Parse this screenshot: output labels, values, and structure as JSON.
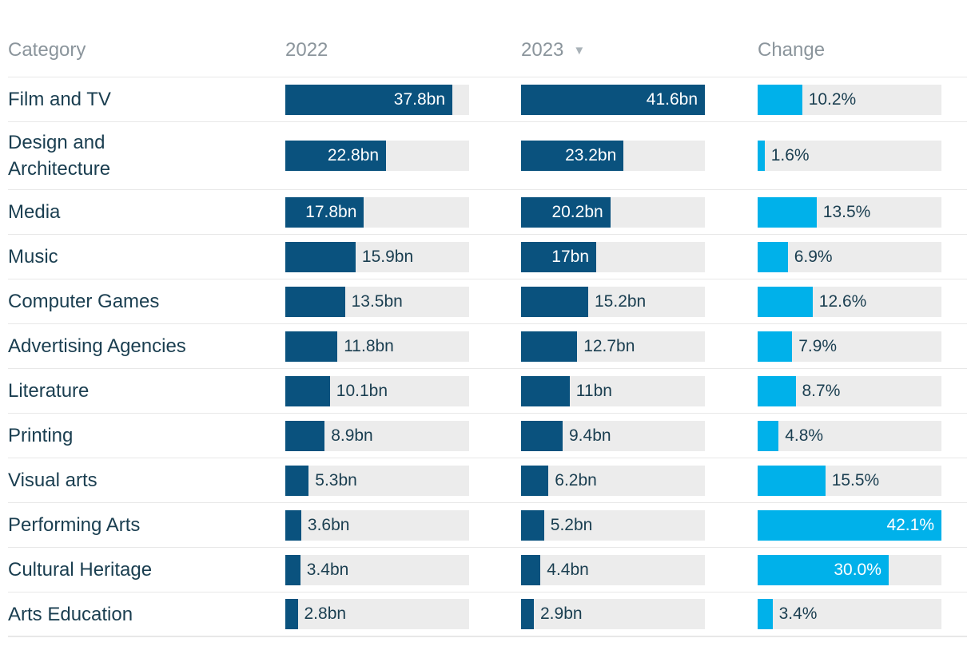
{
  "chart_data": {
    "type": "table",
    "columns": [
      "Category",
      "2022",
      "2023",
      "Change"
    ],
    "categories": [
      "Film and TV",
      "Design and Architecture",
      "Media",
      "Music",
      "Computer Games",
      "Advertising Agencies",
      "Literature",
      "Printing",
      "Visual arts",
      "Performing Arts",
      "Cultural Heritage",
      "Arts Education"
    ],
    "series": [
      {
        "name": "2022",
        "unit": "bn",
        "values": [
          37.8,
          22.8,
          17.8,
          15.9,
          13.5,
          11.8,
          10.1,
          8.9,
          5.3,
          3.6,
          3.4,
          2.8
        ]
      },
      {
        "name": "2023",
        "unit": "bn",
        "values": [
          41.6,
          23.2,
          20.2,
          17,
          15.2,
          12.7,
          11,
          9.4,
          6.2,
          5.2,
          4.4,
          2.9
        ]
      },
      {
        "name": "Change",
        "unit": "%",
        "values": [
          10.2,
          1.6,
          13.5,
          6.9,
          12.6,
          7.9,
          8.7,
          4.8,
          15.5,
          42.1,
          30.0,
          3.4
        ]
      }
    ],
    "sort": {
      "column": "2023",
      "direction": "desc"
    },
    "bar_axis": {
      "bn_range": [
        0,
        41.6
      ],
      "change_range": [
        0,
        42.1
      ],
      "grid": false,
      "legend": "none"
    }
  },
  "header": {
    "category": "Category",
    "y2022": "2022",
    "y2023": "2023",
    "change": "Change"
  },
  "icons": {
    "sort_desc": "▼"
  },
  "colors": {
    "bar_dark": "#0a527e",
    "bar_cyan": "#00b1ea",
    "track": "#ececec",
    "separator": "#e8e8e8",
    "header_text": "#8b959c",
    "label_text": "#1a3e50",
    "inside_text": "#ffffff",
    "arrow": "#a9b2b8"
  },
  "rows": [
    {
      "category": "Film and TV",
      "v2022": 37.8,
      "l2022": "37.8bn",
      "in2022": true,
      "v2023": 41.6,
      "l2023": "41.6bn",
      "in2023": true,
      "change": 10.2,
      "lchange": "10.2%",
      "inchange": false
    },
    {
      "category": "Design and\nArchitecture",
      "v2022": 22.8,
      "l2022": "22.8bn",
      "in2022": true,
      "v2023": 23.2,
      "l2023": "23.2bn",
      "in2023": true,
      "change": 1.6,
      "lchange": "1.6%",
      "inchange": false
    },
    {
      "category": "Media",
      "v2022": 17.8,
      "l2022": "17.8bn",
      "in2022": true,
      "v2023": 20.2,
      "l2023": "20.2bn",
      "in2023": true,
      "change": 13.5,
      "lchange": "13.5%",
      "inchange": false
    },
    {
      "category": "Music",
      "v2022": 15.9,
      "l2022": "15.9bn",
      "in2022": false,
      "v2023": 17,
      "l2023": "17bn",
      "in2023": true,
      "change": 6.9,
      "lchange": "6.9%",
      "inchange": false
    },
    {
      "category": "Computer Games",
      "v2022": 13.5,
      "l2022": "13.5bn",
      "in2022": false,
      "v2023": 15.2,
      "l2023": "15.2bn",
      "in2023": false,
      "change": 12.6,
      "lchange": "12.6%",
      "inchange": false
    },
    {
      "category": "Advertising Agencies",
      "v2022": 11.8,
      "l2022": "11.8bn",
      "in2022": false,
      "v2023": 12.7,
      "l2023": "12.7bn",
      "in2023": false,
      "change": 7.9,
      "lchange": "7.9%",
      "inchange": false
    },
    {
      "category": "Literature",
      "v2022": 10.1,
      "l2022": "10.1bn",
      "in2022": false,
      "v2023": 11,
      "l2023": "11bn",
      "in2023": false,
      "change": 8.7,
      "lchange": "8.7%",
      "inchange": false
    },
    {
      "category": "Printing",
      "v2022": 8.9,
      "l2022": "8.9bn",
      "in2022": false,
      "v2023": 9.4,
      "l2023": "9.4bn",
      "in2023": false,
      "change": 4.8,
      "lchange": "4.8%",
      "inchange": false
    },
    {
      "category": "Visual arts",
      "v2022": 5.3,
      "l2022": "5.3bn",
      "in2022": false,
      "v2023": 6.2,
      "l2023": "6.2bn",
      "in2023": false,
      "change": 15.5,
      "lchange": "15.5%",
      "inchange": false
    },
    {
      "category": "Performing Arts",
      "v2022": 3.6,
      "l2022": "3.6bn",
      "in2022": false,
      "v2023": 5.2,
      "l2023": "5.2bn",
      "in2023": false,
      "change": 42.1,
      "lchange": "42.1%",
      "inchange": true
    },
    {
      "category": "Cultural Heritage",
      "v2022": 3.4,
      "l2022": "3.4bn",
      "in2022": false,
      "v2023": 4.4,
      "l2023": "4.4bn",
      "in2023": false,
      "change": 30.0,
      "lchange": "30.0%",
      "inchange": true
    },
    {
      "category": "Arts Education",
      "v2022": 2.8,
      "l2022": "2.8bn",
      "in2022": false,
      "v2023": 2.9,
      "l2023": "2.9bn",
      "in2023": false,
      "change": 3.4,
      "lchange": "3.4%",
      "inchange": false
    }
  ]
}
